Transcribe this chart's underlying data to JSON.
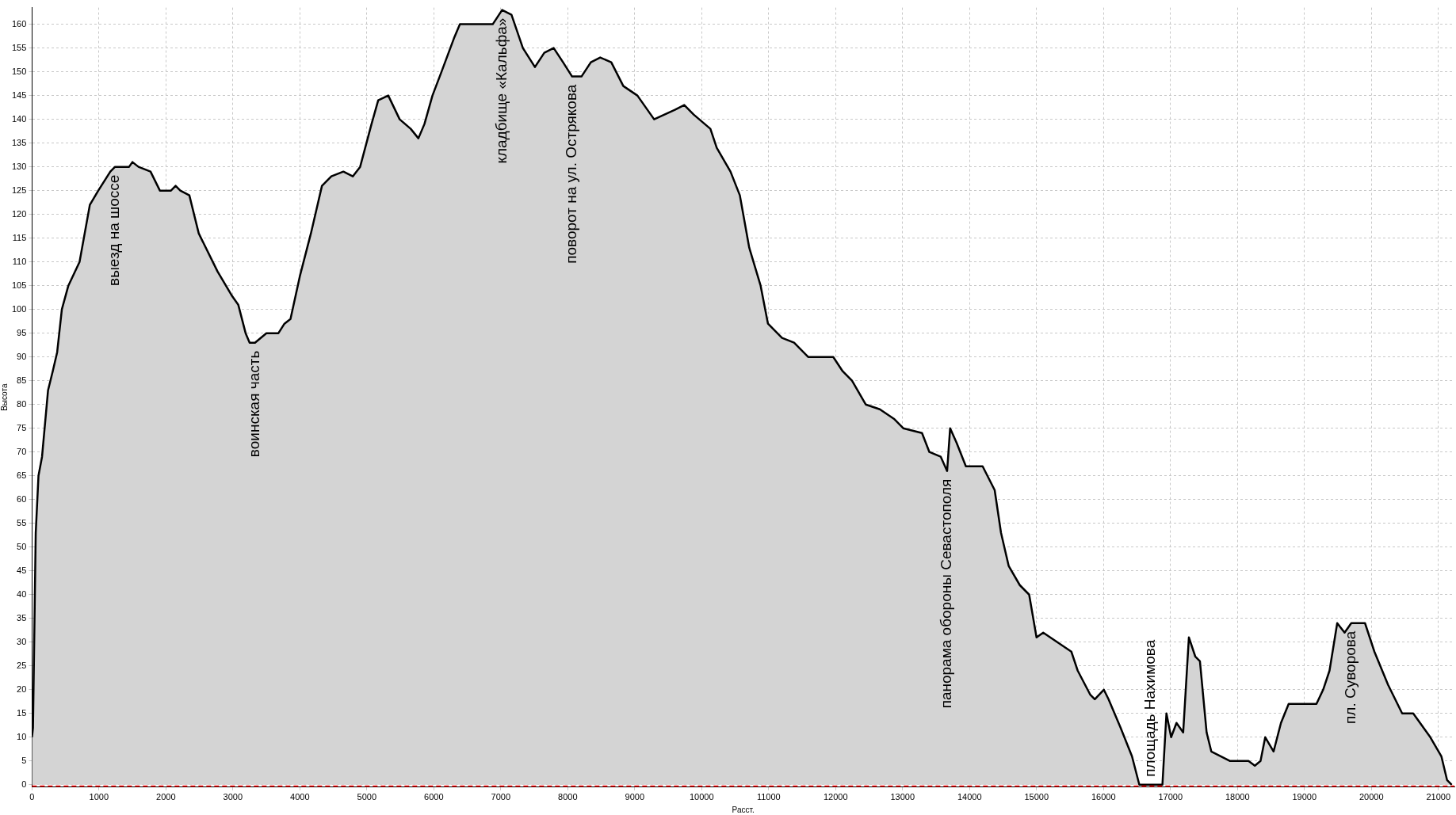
{
  "chart_data": {
    "type": "area",
    "xlabel": "Расст.",
    "ylabel": "Высота",
    "xlim": [
      0,
      21240
    ],
    "ylim": [
      -0.5,
      163.5
    ],
    "xticks": [
      0,
      1000,
      2000,
      3000,
      4000,
      5000,
      6000,
      7000,
      8000,
      9000,
      10000,
      11000,
      12000,
      13000,
      14000,
      15000,
      16000,
      17000,
      18000,
      19000,
      20000,
      21000
    ],
    "yticks": [
      0,
      5,
      10,
      15,
      20,
      25,
      30,
      35,
      40,
      45,
      50,
      55,
      60,
      65,
      70,
      75,
      80,
      85,
      90,
      95,
      100,
      105,
      110,
      115,
      120,
      125,
      130,
      135,
      140,
      145,
      150,
      155,
      160
    ],
    "grid": true,
    "legend": false,
    "marker": "none",
    "line_style": "solid",
    "series": [
      {
        "color": "#000000",
        "x": [
          0,
          15,
          28,
          56,
          97,
          150,
          240,
          310,
          376,
          446,
          543,
          710,
          864,
          990,
          1170,
          1240,
          1450,
          1500,
          1590,
          1770,
          1910,
          2075,
          2145,
          2215,
          2350,
          2490,
          2770,
          2980,
          3080,
          3190,
          3250,
          3330,
          3500,
          3680,
          3770,
          3860,
          4000,
          4165,
          4330,
          4470,
          4650,
          4790,
          4900,
          5070,
          5170,
          5320,
          5490,
          5655,
          5770,
          5860,
          5980,
          6115,
          6300,
          6390,
          6880,
          7020,
          7160,
          7330,
          7510,
          7650,
          7790,
          7930,
          8065,
          8205,
          8345,
          8485,
          8650,
          8830,
          9040,
          9290,
          9600,
          9740,
          9880,
          10130,
          10225,
          10430,
          10570,
          10710,
          10880,
          10990,
          11200,
          11380,
          11590,
          11965,
          12105,
          12245,
          12450,
          12660,
          12870,
          13010,
          13290,
          13400,
          13570,
          13665,
          13710,
          13805,
          13945,
          14195,
          14375,
          14470,
          14585,
          14750,
          14890,
          15000,
          15100,
          15310,
          15520,
          15615,
          15800,
          15870,
          16005,
          16075,
          16255,
          16425,
          16535,
          16700,
          16880,
          16940,
          17010,
          17090,
          17190,
          17275,
          17370,
          17440,
          17540,
          17610,
          17890,
          18165,
          18260,
          18345,
          18415,
          18540,
          18650,
          18765,
          19180,
          19280,
          19375,
          19490,
          19600,
          19700,
          19905,
          20045,
          20250,
          20460,
          20625,
          20880,
          21045,
          21130,
          21200
        ],
        "values": [
          10,
          12,
          25,
          53,
          65,
          69,
          83,
          87,
          91,
          100,
          105,
          110,
          122,
          125,
          129,
          130,
          130,
          131,
          130,
          129,
          125,
          125,
          126,
          125,
          124,
          116,
          108,
          103,
          101,
          95,
          93,
          93,
          95,
          95,
          97,
          98,
          107,
          116,
          126,
          128,
          129,
          128,
          130,
          139,
          144,
          145,
          140,
          138,
          136,
          139,
          145,
          150,
          157,
          160,
          160,
          163,
          162,
          155,
          151,
          154,
          155,
          152,
          149,
          149,
          152,
          153,
          152,
          147,
          145,
          140,
          142,
          143,
          141,
          138,
          134,
          129,
          124,
          113,
          105,
          97,
          94,
          93,
          90,
          90,
          87,
          85,
          80,
          79,
          77,
          75,
          74,
          70,
          69,
          66,
          75,
          72,
          67,
          67,
          62,
          53,
          46,
          42,
          40,
          31,
          32,
          30,
          28,
          24,
          19,
          18,
          20,
          18,
          12,
          6,
          0,
          0,
          0,
          15,
          10,
          13,
          11,
          31,
          27,
          26,
          11,
          7,
          5,
          5,
          4,
          5,
          10,
          7,
          13,
          17,
          17,
          20,
          24,
          34,
          32,
          34,
          34,
          28,
          21,
          15,
          15,
          10,
          6,
          1,
          0
        ],
        "name": null
      }
    ],
    "ref_lines": [
      {
        "axis": "y",
        "value": -0.3,
        "color": "#ff0000",
        "line_style": "dashed"
      }
    ],
    "annotations": [
      {
        "text": "выезд на шоссе",
        "x": 1240,
        "y": 130
      },
      {
        "text": "воинская часть",
        "x": 3330,
        "y": 93
      },
      {
        "text": "кладбище «Кальфа»",
        "x": 7020,
        "y": 163
      },
      {
        "text": "поворот на ул. Острякова",
        "x": 8065,
        "y": 149
      },
      {
        "text": "панорама обороны Севастополя",
        "x": 13665,
        "y": 66
      },
      {
        "text": "площадь Нахимова",
        "x": 16700,
        "y": 0
      },
      {
        "text": "пл. Суворова",
        "x": 19700,
        "y": 34
      }
    ]
  }
}
